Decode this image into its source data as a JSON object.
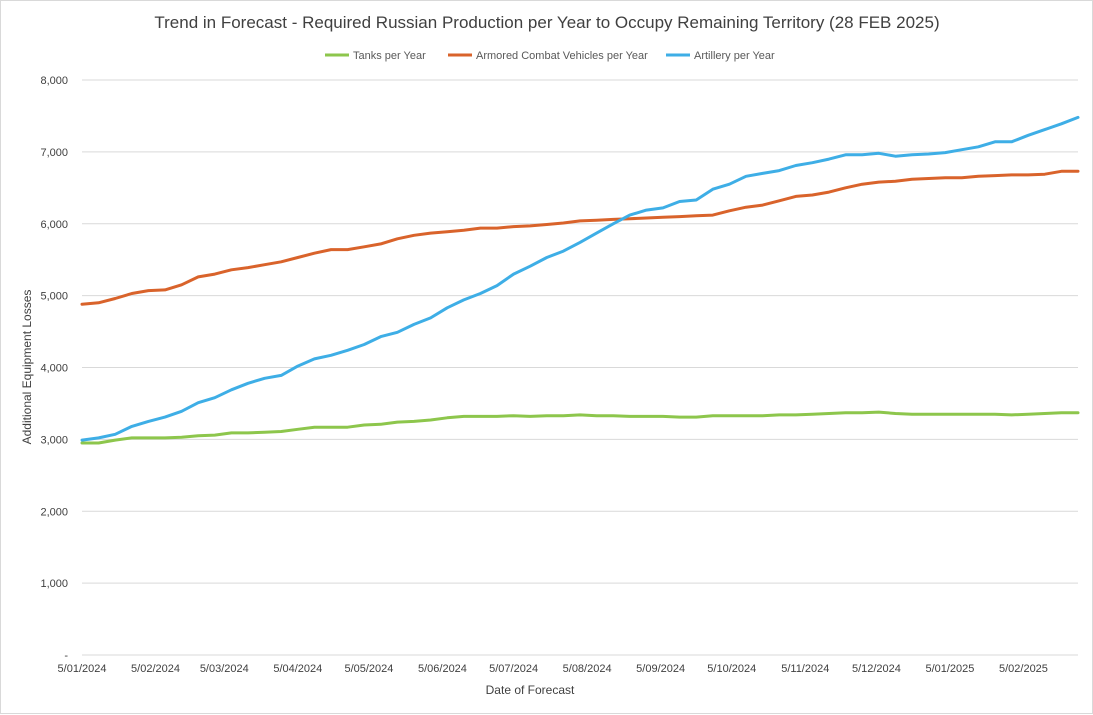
{
  "chart_data": {
    "type": "line",
    "title": "Trend in Forecast - Required Russian Production per Year to Occupy Remaining Territory (28 FEB 2025)",
    "xlabel": "Date of Forecast",
    "ylabel": "Additional Equipment Losses",
    "ylim": [
      0,
      8000
    ],
    "yticks": [
      "-",
      "1,000",
      "2,000",
      "3,000",
      "4,000",
      "5,000",
      "6,000",
      "7,000",
      "8,000"
    ],
    "ytick_values": [
      0,
      1000,
      2000,
      3000,
      4000,
      5000,
      6000,
      7000,
      8000
    ],
    "xlim": [
      "2024-01-05",
      "2025-02-28"
    ],
    "xticks": [
      "5/01/2024",
      "5/02/2024",
      "5/03/2024",
      "5/04/2024",
      "5/05/2024",
      "5/06/2024",
      "5/07/2024",
      "5/08/2024",
      "5/09/2024",
      "5/10/2024",
      "5/11/2024",
      "5/12/2024",
      "5/01/2025",
      "5/02/2025"
    ],
    "xtick_dates": [
      "2024-01-05",
      "2024-02-05",
      "2024-03-05",
      "2024-04-05",
      "2024-05-05",
      "2024-06-05",
      "2024-07-05",
      "2024-08-05",
      "2024-09-05",
      "2024-10-05",
      "2024-11-05",
      "2024-12-05",
      "2025-01-05",
      "2025-02-05"
    ],
    "grid": "horizontal",
    "legend": "top-center",
    "x": [
      "2024-01-05",
      "2024-01-12",
      "2024-01-19",
      "2024-01-26",
      "2024-02-02",
      "2024-02-09",
      "2024-02-16",
      "2024-02-23",
      "2024-03-01",
      "2024-03-08",
      "2024-03-15",
      "2024-03-22",
      "2024-03-29",
      "2024-04-05",
      "2024-04-12",
      "2024-04-19",
      "2024-04-26",
      "2024-05-03",
      "2024-05-10",
      "2024-05-17",
      "2024-05-24",
      "2024-05-31",
      "2024-06-07",
      "2024-06-14",
      "2024-06-21",
      "2024-06-28",
      "2024-07-05",
      "2024-07-12",
      "2024-07-19",
      "2024-07-26",
      "2024-08-02",
      "2024-08-09",
      "2024-08-16",
      "2024-08-23",
      "2024-08-30",
      "2024-09-06",
      "2024-09-13",
      "2024-09-20",
      "2024-09-27",
      "2024-10-04",
      "2024-10-11",
      "2024-10-18",
      "2024-10-25",
      "2024-11-01",
      "2024-11-08",
      "2024-11-15",
      "2024-11-22",
      "2024-11-29",
      "2024-12-06",
      "2024-12-13",
      "2024-12-20",
      "2024-12-27",
      "2025-01-03",
      "2025-01-10",
      "2025-01-17",
      "2025-01-24",
      "2025-01-31",
      "2025-02-07",
      "2025-02-14",
      "2025-02-21",
      "2025-02-28"
    ],
    "series": [
      {
        "name": "Tanks per Year",
        "color": "#8dc64c",
        "values": [
          2950,
          2950,
          2990,
          3020,
          3020,
          3020,
          3030,
          3050,
          3060,
          3090,
          3090,
          3100,
          3110,
          3140,
          3170,
          3170,
          3170,
          3200,
          3210,
          3240,
          3250,
          3270,
          3300,
          3320,
          3320,
          3320,
          3330,
          3320,
          3330,
          3330,
          3340,
          3330,
          3330,
          3320,
          3320,
          3320,
          3310,
          3310,
          3330,
          3330,
          3330,
          3330,
          3340,
          3340,
          3350,
          3360,
          3370,
          3370,
          3380,
          3360,
          3350,
          3350,
          3350,
          3350,
          3350,
          3350,
          3340,
          3350,
          3360,
          3370,
          3370
        ]
      },
      {
        "name": "Armored Combat Vehicles per Year",
        "color": "#d9632b",
        "values": [
          4880,
          4900,
          4960,
          5030,
          5070,
          5080,
          5150,
          5260,
          5300,
          5360,
          5390,
          5430,
          5470,
          5530,
          5590,
          5640,
          5640,
          5680,
          5720,
          5790,
          5840,
          5870,
          5890,
          5910,
          5940,
          5940,
          5960,
          5970,
          5990,
          6010,
          6040,
          6050,
          6060,
          6070,
          6080,
          6090,
          6100,
          6110,
          6120,
          6180,
          6230,
          6260,
          6320,
          6380,
          6400,
          6440,
          6500,
          6550,
          6580,
          6590,
          6620,
          6630,
          6640,
          6640,
          6660,
          6670,
          6680,
          6680,
          6690,
          6730,
          6730
        ]
      },
      {
        "name": "Artillery per Year",
        "color": "#3eaee6",
        "values": [
          2990,
          3020,
          3070,
          3180,
          3250,
          3310,
          3390,
          3510,
          3580,
          3690,
          3780,
          3850,
          3890,
          4020,
          4120,
          4170,
          4240,
          4320,
          4430,
          4490,
          4600,
          4690,
          4830,
          4940,
          5030,
          5140,
          5300,
          5410,
          5530,
          5620,
          5740,
          5870,
          6000,
          6120,
          6190,
          6220,
          6310,
          6330,
          6480,
          6550,
          6660,
          6700,
          6740,
          6810,
          6850,
          6900,
          6960,
          6960,
          6980,
          6940,
          6960,
          6970,
          6990,
          7030,
          7070,
          7140,
          7140,
          7230,
          7310,
          7390,
          7480
        ]
      }
    ]
  }
}
